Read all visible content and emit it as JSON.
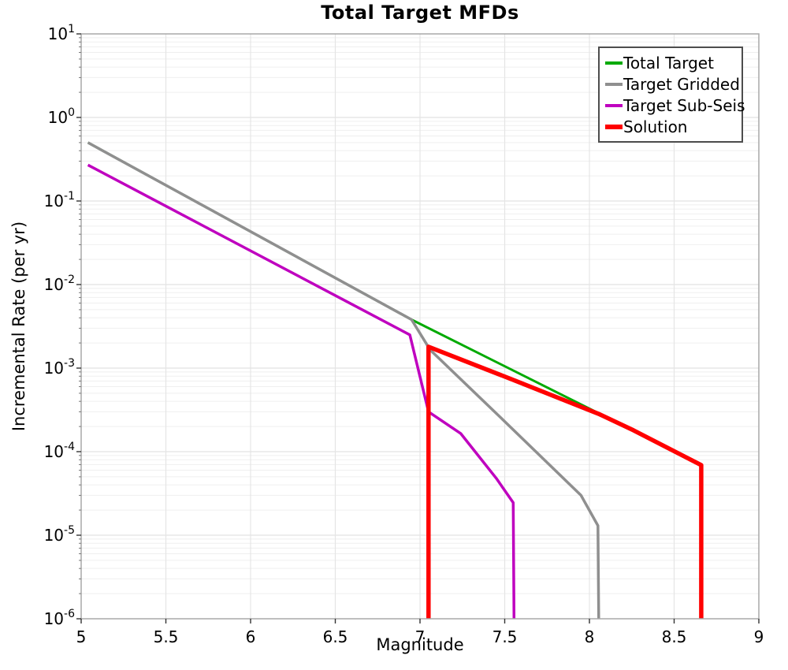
{
  "chart_data": {
    "type": "line",
    "title": "Total Target MFDs",
    "xlabel": "Magnitude",
    "ylabel": "Incremental Rate (per yr)",
    "xlim": [
      5,
      9
    ],
    "ylim_exp": [
      -6,
      1
    ],
    "xticks": [
      5,
      5.5,
      6,
      6.5,
      7,
      7.5,
      8,
      8.5,
      9
    ],
    "ytick_exponents": [
      1,
      0,
      -1,
      -2,
      -3,
      -4,
      -5,
      -6
    ],
    "grid": true,
    "legend_position": "upper right",
    "colors": {
      "frame": "#a8a8a8",
      "grid_major": "#e2e2e2",
      "grid_minor": "#efefef",
      "grid_vertical": "#e5e5e5",
      "tick": "#333333"
    },
    "series": [
      {
        "name": "Total Target",
        "color": "#00aa00",
        "width": 3,
        "points": [
          [
            5.04,
            0.5
          ],
          [
            6.95,
            0.0038
          ],
          [
            8.66,
            7e-05
          ]
        ]
      },
      {
        "name": "Target Gridded",
        "color": "#8f8f8f",
        "width": 3.5,
        "points": [
          [
            5.04,
            0.5
          ],
          [
            6.95,
            0.0038
          ],
          [
            7.06,
            0.00165
          ],
          [
            7.5,
            0.00023
          ],
          [
            7.95,
            3e-05
          ],
          [
            8.05,
            1.3e-05
          ],
          [
            8.055,
            1e-06
          ]
        ]
      },
      {
        "name": "Target Sub-Seis",
        "color": "#bf00bf",
        "width": 3.5,
        "points": [
          [
            5.04,
            0.27
          ],
          [
            6.94,
            0.0025
          ],
          [
            7.05,
            0.0003
          ],
          [
            7.24,
            0.000165
          ],
          [
            7.45,
            4.8e-05
          ],
          [
            7.55,
            2.45e-05
          ],
          [
            7.555,
            1e-06
          ]
        ]
      },
      {
        "name": "Solution",
        "color": "#ff0000",
        "width": 5.5,
        "points": [
          [
            7.05,
            1e-06
          ],
          [
            7.05,
            0.0018
          ],
          [
            7.56,
            0.00071
          ],
          [
            8.06,
            0.00028
          ],
          [
            8.26,
            0.00018
          ],
          [
            8.66,
            6.9e-05
          ],
          [
            8.66,
            1e-06
          ]
        ]
      }
    ]
  }
}
